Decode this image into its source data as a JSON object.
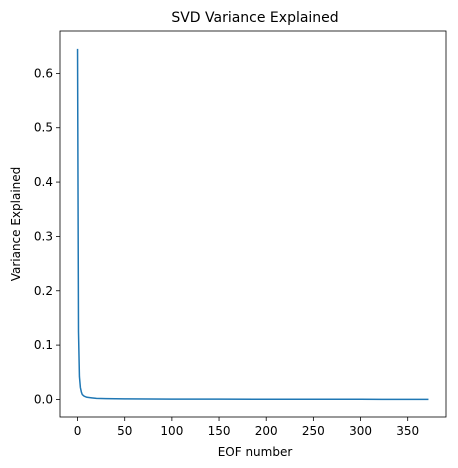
{
  "chart_data": {
    "type": "line",
    "title": "SVD Variance Explained",
    "xlabel": "EOF number",
    "ylabel": "Variance Explained",
    "xlim": [
      -18.6,
      390.6
    ],
    "ylim": [
      -0.0323,
      0.678
    ],
    "xticks": [
      0,
      50,
      100,
      150,
      200,
      250,
      300,
      350
    ],
    "yticks": [
      0.0,
      0.1,
      0.2,
      0.3,
      0.4,
      0.5,
      0.6
    ],
    "ytick_labels": [
      "0.0",
      "0.1",
      "0.2",
      "0.3",
      "0.4",
      "0.5",
      "0.6"
    ],
    "grid": false,
    "legend": "none",
    "series": [
      {
        "color": "#1f77b4",
        "x": [
          0,
          1,
          2,
          3,
          4,
          5,
          7,
          10,
          15,
          20,
          30,
          50,
          100,
          150,
          200,
          250,
          300,
          350,
          372
        ],
        "y": [
          0.645,
          0.125,
          0.042,
          0.022,
          0.014,
          0.009,
          0.006,
          0.004,
          0.003,
          0.002,
          0.0015,
          0.001,
          0.0007,
          0.0005,
          0.0004,
          0.0003,
          0.00025,
          0.0002,
          0.0001
        ]
      }
    ]
  }
}
